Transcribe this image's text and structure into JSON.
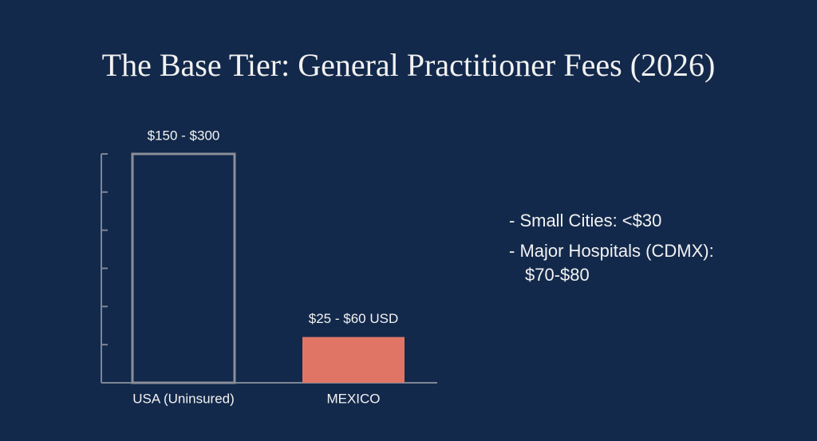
{
  "chart_data": {
    "type": "bar",
    "title": "The Base Tier: General Practitioner Fees (2026)",
    "categories": [
      "USA (Uninsured)",
      "MEXICO"
    ],
    "values": [
      300,
      60
    ],
    "value_labels": [
      "$150 - $300",
      "$25 - $60 USD"
    ],
    "colors": [
      "#8a8f98",
      "#e07565"
    ],
    "outlined": [
      true,
      false
    ],
    "ylim": [
      0,
      300
    ],
    "yticks": [
      0,
      50,
      100,
      150,
      200,
      250,
      300
    ],
    "annotations": [
      "- Small Cities: <$30",
      "- Major Hospitals (CDMX): $70-$80"
    ]
  }
}
